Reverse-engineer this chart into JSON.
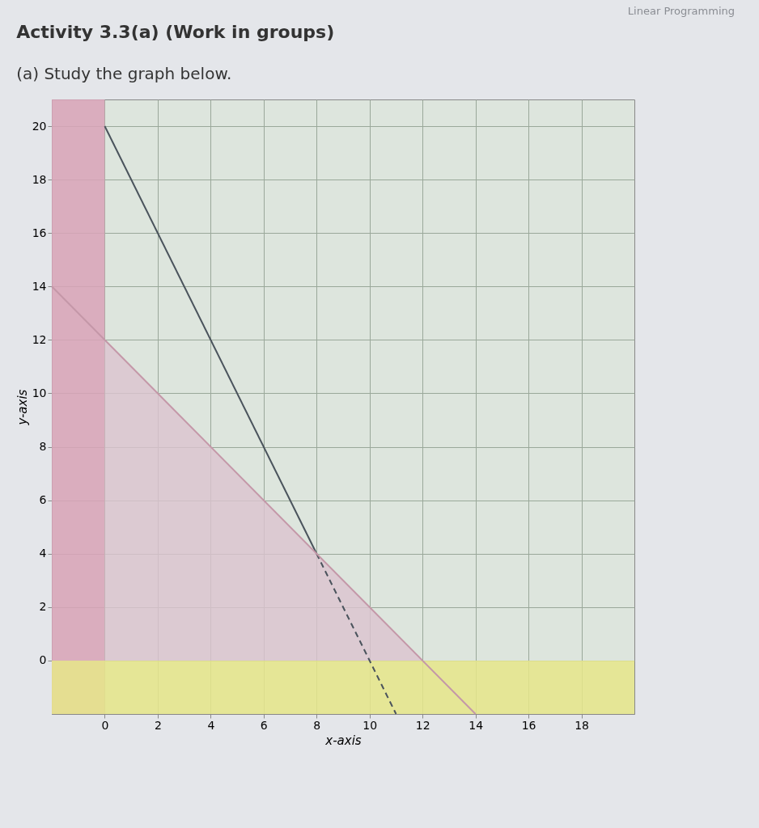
{
  "chart_data": {
    "type": "line",
    "title": "Activity 3.3(a) (Work in groups)",
    "subtitle": "(a) Study the graph below.",
    "xlabel": "x-axis",
    "ylabel": "y-axis",
    "annotations": [
      "Linear Programming"
    ],
    "xlim": [
      -2,
      20
    ],
    "ylim": [
      -2,
      21
    ],
    "xticks": [
      0,
      2,
      4,
      6,
      8,
      10,
      12,
      14,
      16,
      18
    ],
    "yticks": [
      0,
      2,
      4,
      6,
      8,
      10,
      12,
      14,
      16,
      18,
      20
    ],
    "grid": true,
    "marker": "none",
    "bands": [
      {
        "axis": "x",
        "from": -2,
        "to": 0,
        "color": "#d9a3b9"
      },
      {
        "axis": "y",
        "from": -2,
        "to": 0,
        "color": "#e6e68a"
      }
    ],
    "series": [
      {
        "type": "area",
        "color": "#dcc3cf",
        "x": [
          0,
          12
        ],
        "values": [
          12,
          0
        ]
      },
      {
        "color": "#4a535c",
        "x": [
          0,
          8
        ],
        "values": [
          20,
          4
        ],
        "line_style": "solid"
      },
      {
        "color": "#4a535c",
        "x": [
          8,
          11
        ],
        "values": [
          4,
          -2
        ],
        "line_style": "dashed"
      },
      {
        "color": "#c497a8",
        "x": [
          -2,
          14
        ],
        "values": [
          14,
          -2
        ],
        "line_style": "solid"
      }
    ]
  }
}
